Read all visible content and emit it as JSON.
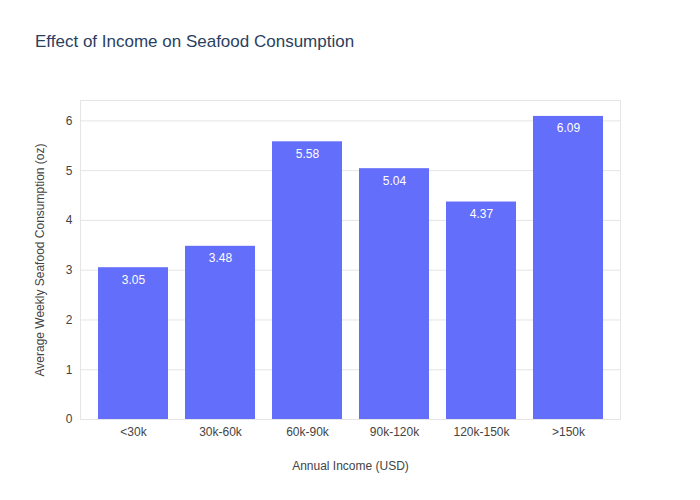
{
  "chart_data": {
    "type": "bar",
    "title": "Effect of Income on Seafood Consumption",
    "x_label": "Annual Income (USD)",
    "y_label": "Average Weekly Seafood Consumption (oz)",
    "categories": [
      "<30k",
      "30k-60k",
      "60k-90k",
      "90k-120k",
      "120k-150k",
      ">150k"
    ],
    "values": [
      3.05,
      3.48,
      5.58,
      5.04,
      4.37,
      6.09
    ],
    "color": "#636efa",
    "ylim": [
      0,
      6.41
    ],
    "yticks": [
      0,
      1,
      2,
      3,
      4,
      5,
      6
    ],
    "grid": true,
    "data_labels": true
  }
}
